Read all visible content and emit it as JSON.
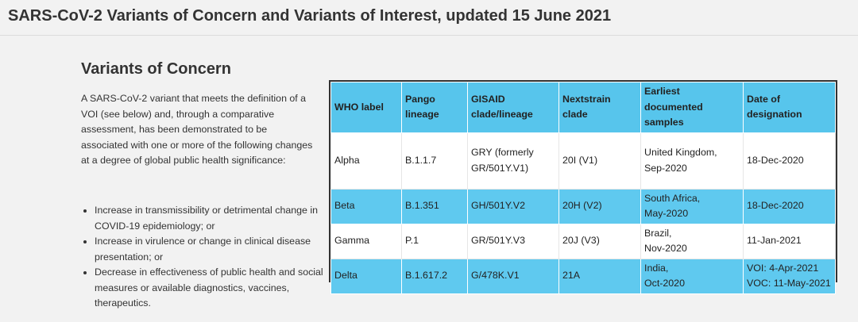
{
  "page": {
    "title": "SARS-CoV-2 Variants of Concern and Variants of Interest, updated 15 June 2021"
  },
  "section": {
    "title": "Variants of Concern",
    "intro": "A SARS-CoV-2 variant that meets the definition of a VOI (see below) and, through a comparative assessment, has been demonstrated to be associated with one or more of the following changes at a degree of global public health significance:",
    "criteria": [
      "Increase in transmissibility or detrimental change in COVID-19 epidemiology; or",
      "Increase in virulence or change in clinical disease presentation; or",
      "Decrease in effectiveness of public health and social measures or available diagnostics, vaccines, therapeutics."
    ]
  },
  "table": {
    "headers": [
      "WHO label",
      "Pango lineage",
      "GISAID clade/lineage",
      "Nextstrain clade",
      "Earliest documented samples",
      "Date of designation"
    ],
    "rows": [
      {
        "who_label": "Alpha",
        "pango": "B.1.1.7",
        "gisaid": "GRY (formerly GR/501Y.V1)",
        "nextstrain": "20I (V1)",
        "earliest": [
          "United Kingdom,",
          "Sep-2020"
        ],
        "designation": [
          "18-Dec-2020"
        ]
      },
      {
        "who_label": "Beta",
        "pango": "B.1.351",
        "gisaid": "GH/501Y.V2",
        "nextstrain": "20H (V2)",
        "earliest": [
          "South Africa,",
          "May-2020"
        ],
        "designation": [
          "18-Dec-2020"
        ]
      },
      {
        "who_label": "Gamma",
        "pango": "P.1",
        "gisaid": "GR/501Y.V3",
        "nextstrain": "20J (V3)",
        "earliest": [
          "Brazil,",
          "Nov-2020"
        ],
        "designation": [
          "11-Jan-2021"
        ]
      },
      {
        "who_label": "Delta",
        "pango": "B.1.617.2",
        "gisaid": "G/478K.V1",
        "nextstrain": "21A",
        "earliest": [
          "India,",
          "Oct-2020"
        ],
        "designation": [
          "VOI: 4-Apr-2021",
          "VOC: 11-May-2021"
        ]
      }
    ],
    "colors": {
      "header_bg": "#57c5ec",
      "stripe_bg": "#5fc9ef",
      "plain_bg": "#ffffff"
    }
  }
}
